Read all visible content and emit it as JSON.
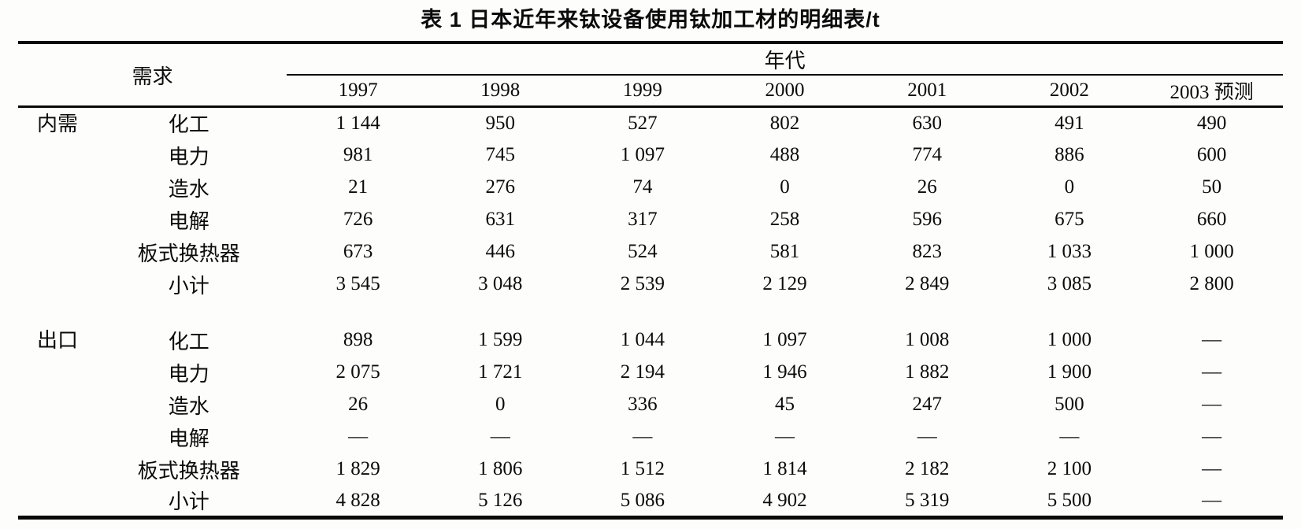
{
  "title": "表 1  日本近年来钛设备使用钛加工材的明细表/t",
  "table": {
    "demand_header": "需求",
    "era_header": "年代",
    "years": [
      "1997",
      "1998",
      "1999",
      "2000",
      "2001",
      "2002",
      "2003 预测"
    ],
    "groups": [
      {
        "name": "内需",
        "rows": [
          {
            "category": "化工",
            "values": [
              "1 144",
              "950",
              "527",
              "802",
              "630",
              "491",
              "490"
            ]
          },
          {
            "category": "电力",
            "values": [
              "981",
              "745",
              "1 097",
              "488",
              "774",
              "886",
              "600"
            ]
          },
          {
            "category": "造水",
            "values": [
              "21",
              "276",
              "74",
              "0",
              "26",
              "0",
              "50"
            ]
          },
          {
            "category": "电解",
            "values": [
              "726",
              "631",
              "317",
              "258",
              "596",
              "675",
              "660"
            ]
          },
          {
            "category": "板式换热器",
            "values": [
              "673",
              "446",
              "524",
              "581",
              "823",
              "1 033",
              "1 000"
            ]
          },
          {
            "category": "小计",
            "values": [
              "3 545",
              "3 048",
              "2 539",
              "2 129",
              "2 849",
              "3 085",
              "2 800"
            ]
          }
        ]
      },
      {
        "name": "出口",
        "rows": [
          {
            "category": "化工",
            "values": [
              "898",
              "1 599",
              "1 044",
              "1 097",
              "1 008",
              "1 000",
              "—"
            ]
          },
          {
            "category": "电力",
            "values": [
              "2 075",
              "1 721",
              "2 194",
              "1 946",
              "1 882",
              "1 900",
              "—"
            ]
          },
          {
            "category": "造水",
            "values": [
              "26",
              "0",
              "336",
              "45",
              "247",
              "500",
              "—"
            ]
          },
          {
            "category": "电解",
            "values": [
              "—",
              "—",
              "—",
              "—",
              "—",
              "—",
              "—"
            ]
          },
          {
            "category": "板式换热器",
            "values": [
              "1 829",
              "1 806",
              "1 512",
              "1 814",
              "2 182",
              "2 100",
              "—"
            ]
          },
          {
            "category": "小计",
            "values": [
              "4 828",
              "5 126",
              "5 086",
              "4 902",
              "5 319",
              "5 500",
              "—"
            ]
          }
        ]
      }
    ]
  }
}
